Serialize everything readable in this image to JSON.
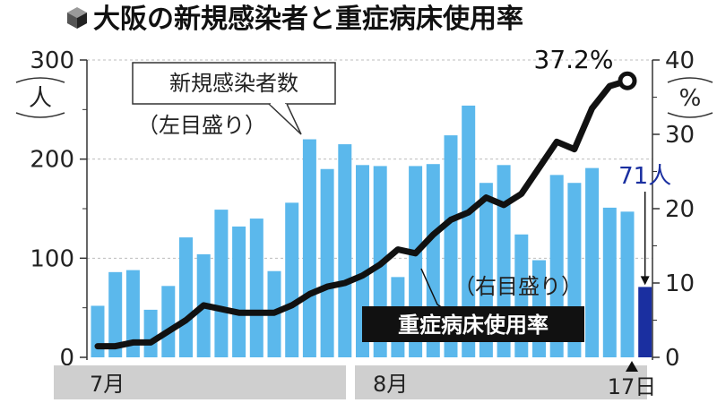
{
  "chart_data": {
    "type": "bar+line",
    "title": "大阪の新規感染者と重症病床使用率",
    "title_icon": "cube-icon",
    "left_axis": {
      "unit_label": "人",
      "ylim": [
        0,
        300
      ],
      "ticks": [
        "0",
        "100",
        "200",
        "300"
      ]
    },
    "right_axis": {
      "unit_label": "%",
      "ylim": [
        0,
        40
      ],
      "ticks": [
        "0",
        "10",
        "20",
        "30",
        "40"
      ]
    },
    "months": [
      "7月",
      "8月"
    ],
    "end_label": "17日",
    "bars": {
      "name": "新規感染者数",
      "axis_note": "（左目盛り）",
      "color": "#5bb8ec",
      "highlight_color": "#1a2fa0",
      "values": [
        52,
        86,
        88,
        48,
        72,
        121,
        104,
        149,
        132,
        140,
        87,
        156,
        220,
        190,
        215,
        194,
        193,
        81,
        193,
        195,
        224,
        254,
        176,
        194,
        124,
        98,
        184,
        176,
        191,
        151,
        147,
        71
      ],
      "highlight_index": 31,
      "highlight_label": "71人"
    },
    "line": {
      "name": "重症病床使用率",
      "axis_note": "（右目盛り）",
      "color": "#111111",
      "values": [
        1.5,
        1.5,
        2,
        2,
        3.5,
        5,
        7,
        6.5,
        6,
        6,
        6,
        7,
        8.5,
        9.5,
        10,
        11,
        12.5,
        14.5,
        14,
        16.5,
        18.5,
        19.5,
        21.5,
        20.5,
        22,
        25.5,
        29,
        28,
        33.5,
        36.5,
        37.2
      ],
      "end_label": "37.2%"
    }
  }
}
